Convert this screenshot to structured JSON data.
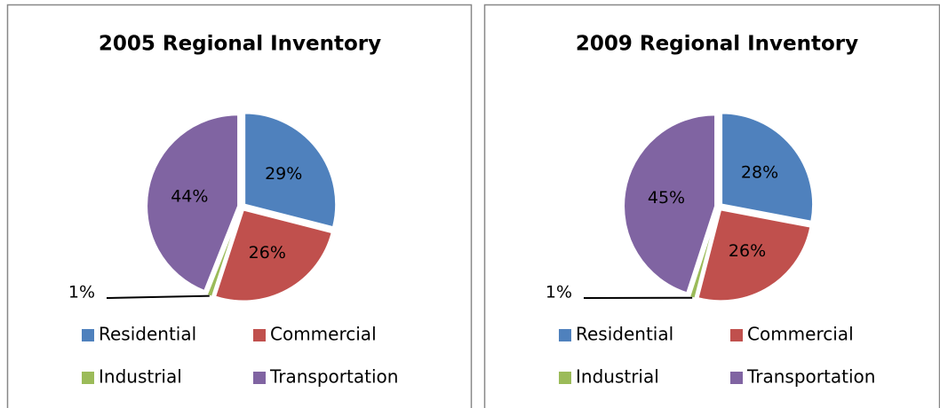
{
  "chart_data": [
    {
      "type": "pie",
      "title": "2005 Regional Inventory",
      "categories": [
        "Residential",
        "Commercial",
        "Industrial",
        "Transportation"
      ],
      "values": [
        29,
        26,
        1,
        44
      ],
      "value_labels": [
        "29%",
        "26%",
        "1%",
        "44%"
      ],
      "colors": [
        "#4f81bd",
        "#c0504d",
        "#9bbb59",
        "#8064a2"
      ]
    },
    {
      "type": "pie",
      "title": "2009 Regional Inventory",
      "categories": [
        "Residential",
        "Commercial",
        "Industrial",
        "Transportation"
      ],
      "values": [
        28,
        26,
        1,
        45
      ],
      "value_labels": [
        "28%",
        "26%",
        "1%",
        "45%"
      ],
      "colors": [
        "#4f81bd",
        "#c0504d",
        "#9bbb59",
        "#8064a2"
      ]
    }
  ]
}
